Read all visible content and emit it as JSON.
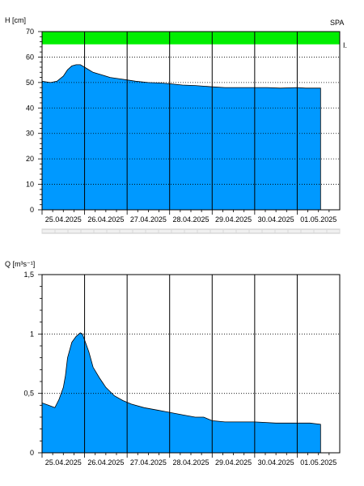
{
  "colors": {
    "fill": "#0099ff",
    "band": "#00ee00",
    "axis": "#000000",
    "grid": "#000000"
  },
  "top_right_label": "SPA",
  "band_end_label": "I.",
  "chart_data": [
    {
      "type": "area",
      "ylabel": "H [cm]",
      "ylim": [
        0,
        70
      ],
      "yticks": [
        {
          "value": 0,
          "label": "0"
        },
        {
          "value": 10,
          "label": "10"
        },
        {
          "value": 20,
          "label": "20"
        },
        {
          "value": 30,
          "label": "30"
        },
        {
          "value": 40,
          "label": "40"
        },
        {
          "value": 50,
          "label": "50"
        },
        {
          "value": 60,
          "label": "60"
        },
        {
          "value": 70,
          "label": "70"
        }
      ],
      "grid": true,
      "threshold_band": [
        65,
        70
      ],
      "xlim": [
        0,
        7
      ],
      "xticks": [
        "25.04.2025",
        "26.04.2025",
        "27.04.2025",
        "28.04.2025",
        "29.04.2025",
        "30.04.2025",
        "01.05.2025"
      ],
      "x": [
        0,
        0.2,
        0.35,
        0.5,
        0.6,
        0.7,
        0.8,
        0.9,
        1.0,
        1.1,
        1.2,
        1.4,
        1.6,
        1.8,
        2.0,
        2.2,
        2.5,
        2.8,
        3.0,
        3.3,
        3.6,
        4.0,
        4.3,
        4.6,
        5.0,
        5.3,
        5.6,
        6.0,
        6.2,
        6.55
      ],
      "y": [
        50.5,
        50,
        50.5,
        52.5,
        55,
        56.5,
        57,
        57,
        56,
        55,
        54,
        53,
        52,
        51.5,
        51,
        50.5,
        50,
        49.8,
        49.5,
        49,
        48.8,
        48.3,
        48,
        48,
        48,
        48,
        47.8,
        48,
        47.8,
        47.8
      ]
    },
    {
      "type": "area",
      "ylabel": "Q [m³s⁻¹]",
      "ylim": [
        0,
        1.5
      ],
      "yticks": [
        {
          "value": 0,
          "label": "0"
        },
        {
          "value": 0.5,
          "label": "0,5"
        },
        {
          "value": 1,
          "label": "1"
        },
        {
          "value": 1.5,
          "label": "1,5"
        }
      ],
      "grid": true,
      "xlim": [
        0,
        7
      ],
      "xticks": [
        "25.04.2025",
        "26.04.2025",
        "27.04.2025",
        "28.04.2025",
        "29.04.2025",
        "30.04.2025",
        "01.05.2025"
      ],
      "x": [
        0,
        0.15,
        0.3,
        0.4,
        0.5,
        0.55,
        0.6,
        0.7,
        0.8,
        0.9,
        0.95,
        1.0,
        1.1,
        1.2,
        1.35,
        1.5,
        1.7,
        1.9,
        2.1,
        2.4,
        2.7,
        3.0,
        3.3,
        3.6,
        3.8,
        4.0,
        4.3,
        4.6,
        5.0,
        5.5,
        6.0,
        6.3,
        6.55
      ],
      "y": [
        0.42,
        0.4,
        0.38,
        0.45,
        0.55,
        0.65,
        0.8,
        0.93,
        0.98,
        1.01,
        1.0,
        0.95,
        0.85,
        0.72,
        0.63,
        0.55,
        0.48,
        0.44,
        0.41,
        0.38,
        0.36,
        0.34,
        0.32,
        0.3,
        0.3,
        0.27,
        0.26,
        0.26,
        0.26,
        0.25,
        0.25,
        0.25,
        0.24
      ]
    }
  ]
}
